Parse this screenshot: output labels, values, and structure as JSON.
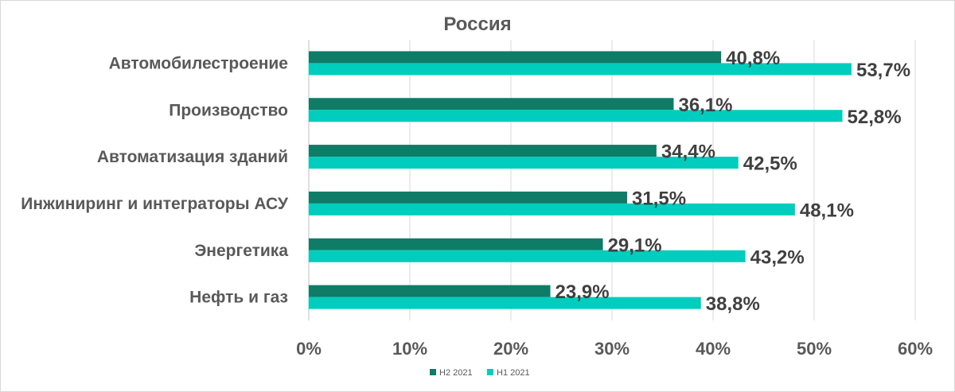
{
  "chart_data": {
    "type": "bar",
    "orientation": "horizontal",
    "title": "Россия",
    "categories": [
      "Автомобилестроение",
      "Производство",
      "Автоматизация зданий",
      "Инжиниринг и интеграторы АСУ",
      "Энергетика",
      "Нефть и газ"
    ],
    "series": [
      {
        "name": "H2 2021",
        "color": "#0e7c67",
        "values": [
          40.8,
          36.1,
          34.4,
          31.5,
          29.1,
          23.9
        ],
        "labels": [
          "40,8%",
          "36,1%",
          "34,4%",
          "31,5%",
          "29,1%",
          "23,9%"
        ]
      },
      {
        "name": "H1 2021",
        "color": "#00cdbd",
        "values": [
          53.7,
          52.8,
          42.5,
          48.1,
          43.2,
          38.8
        ],
        "labels": [
          "53,7%",
          "52,8%",
          "42,5%",
          "48,1%",
          "43,2%",
          "38,8%"
        ]
      }
    ],
    "xlim": [
      0,
      60
    ],
    "ticks": [
      {
        "value": 0,
        "label": "0%"
      },
      {
        "value": 10,
        "label": "10%"
      },
      {
        "value": 20,
        "label": "20%"
      },
      {
        "value": 30,
        "label": "30%"
      },
      {
        "value": 40,
        "label": "40%"
      },
      {
        "value": 50,
        "label": "50%"
      },
      {
        "value": 60,
        "label": "60%"
      }
    ],
    "grid": true,
    "legend_position": "bottom"
  }
}
